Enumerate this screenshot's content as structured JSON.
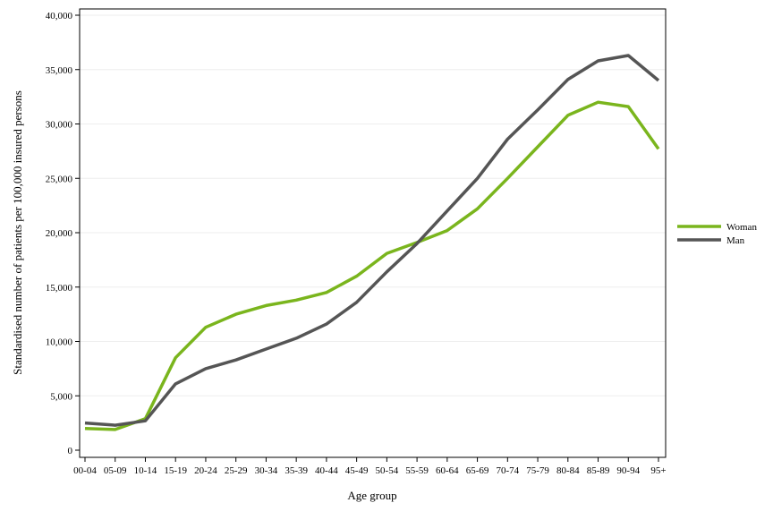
{
  "chart_data": {
    "type": "line",
    "title": "",
    "xlabel": "Age group",
    "ylabel": "Standardised number of patients per 100,000 insured persons",
    "categories": [
      "00-04",
      "05-09",
      "10-14",
      "15-19",
      "20-24",
      "25-29",
      "30-34",
      "35-39",
      "40-44",
      "45-49",
      "50-54",
      "55-59",
      "60-64",
      "65-69",
      "70-74",
      "75-79",
      "80-84",
      "85-89",
      "90-94",
      "95+"
    ],
    "ylim": [
      0,
      40000
    ],
    "yticks": [
      0,
      5000,
      10000,
      15000,
      20000,
      25000,
      30000,
      35000,
      40000
    ],
    "ytick_labels": [
      "0",
      "5,000",
      "10,000",
      "15,000",
      "20,000",
      "25,000",
      "30,000",
      "35,000",
      "40,000"
    ],
    "grid": "horizontal",
    "legend_position": "right",
    "series": [
      {
        "name": "Woman",
        "color": "#7ab51d",
        "values": [
          2000,
          1900,
          2900,
          8500,
          11300,
          12500,
          13300,
          13800,
          14500,
          16000,
          18100,
          19100,
          20200,
          22200,
          25000,
          27900,
          30800,
          32000,
          31600,
          27700
        ]
      },
      {
        "name": "Man",
        "color": "#555555",
        "values": [
          2500,
          2300,
          2700,
          6100,
          7500,
          8300,
          9300,
          10300,
          11600,
          13600,
          16400,
          19000,
          22000,
          25000,
          28600,
          31300,
          34100,
          35800,
          36300,
          34000
        ]
      }
    ]
  }
}
